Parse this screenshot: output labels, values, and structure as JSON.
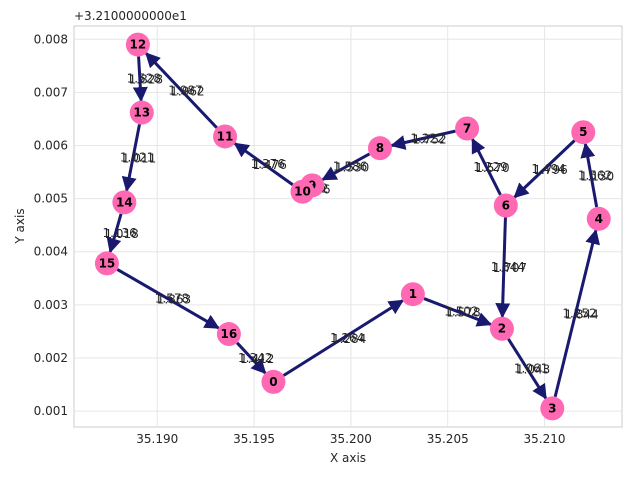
{
  "chart_data": {
    "type": "scatter",
    "xlabel": "X axis",
    "ylabel": "Y axis",
    "offset_label": "+3.2100000000e1",
    "xlim": [
      35.1857,
      35.214
    ],
    "ylim": [
      0.0007,
      0.00825
    ],
    "x_ticks": [
      35.19,
      35.195,
      35.2,
      35.205,
      35.21
    ],
    "x_tick_labels": [
      "35.190",
      "35.195",
      "35.200",
      "35.205",
      "35.210"
    ],
    "y_ticks": [
      0.001,
      0.002,
      0.003,
      0.004,
      0.005,
      0.006,
      0.007,
      0.008
    ],
    "y_tick_labels": [
      "0.001",
      "0.002",
      "0.003",
      "0.004",
      "0.005",
      "0.006",
      "0.007",
      "0.008"
    ],
    "grid": true,
    "node_color": "#ff69b4",
    "edge_color": "#191970",
    "nodes": [
      {
        "id": "0",
        "x": 35.196,
        "y": 0.00155
      },
      {
        "id": "1",
        "x": 35.2032,
        "y": 0.0032
      },
      {
        "id": "2",
        "x": 35.2078,
        "y": 0.00255
      },
      {
        "id": "3",
        "x": 35.2104,
        "y": 0.00105
      },
      {
        "id": "4",
        "x": 35.2128,
        "y": 0.00462
      },
      {
        "id": "5",
        "x": 35.212,
        "y": 0.00625
      },
      {
        "id": "6",
        "x": 35.208,
        "y": 0.00487
      },
      {
        "id": "7",
        "x": 35.206,
        "y": 0.00632
      },
      {
        "id": "8",
        "x": 35.2015,
        "y": 0.00595
      },
      {
        "id": "9",
        "x": 35.198,
        "y": 0.00525
      },
      {
        "id": "10",
        "x": 35.1975,
        "y": 0.00513
      },
      {
        "id": "11",
        "x": 35.1935,
        "y": 0.00617
      },
      {
        "id": "12",
        "x": 35.189,
        "y": 0.0079
      },
      {
        "id": "13",
        "x": 35.1892,
        "y": 0.00662
      },
      {
        "id": "14",
        "x": 35.1883,
        "y": 0.00493
      },
      {
        "id": "15",
        "x": 35.1874,
        "y": 0.00378
      },
      {
        "id": "16",
        "x": 35.1937,
        "y": 0.00245
      }
    ],
    "edges": [
      {
        "from": "0",
        "to": "1",
        "labels": [
          "1.264",
          "1.284"
        ]
      },
      {
        "from": "1",
        "to": "2",
        "labels": [
          "1.502",
          "1.578"
        ]
      },
      {
        "from": "2",
        "to": "3",
        "labels": [
          "1.061",
          "1.043"
        ]
      },
      {
        "from": "3",
        "to": "4",
        "labels": [
          "1.252",
          "1.844"
        ]
      },
      {
        "from": "4",
        "to": "5",
        "labels": [
          "1.562",
          "1.130"
        ]
      },
      {
        "from": "5",
        "to": "6",
        "labels": [
          "1.494",
          "1.796"
        ]
      },
      {
        "from": "6",
        "to": "2",
        "labels": [
          "1.344",
          "1.707"
        ]
      },
      {
        "from": "6",
        "to": "7",
        "labels": [
          "1.229",
          "1.570"
        ]
      },
      {
        "from": "7",
        "to": "8",
        "labels": [
          "1.222",
          "1.752"
        ]
      },
      {
        "from": "8",
        "to": "9",
        "labels": [
          "1.586",
          "1.530"
        ]
      },
      {
        "from": "9",
        "to": "10",
        "labels": [
          "0.282",
          "0.256"
        ]
      },
      {
        "from": "10",
        "to": "11",
        "labels": [
          "1.376",
          "1.476"
        ]
      },
      {
        "from": "11",
        "to": "12",
        "labels": [
          "1.987",
          "1.962"
        ]
      },
      {
        "from": "12",
        "to": "13",
        "labels": [
          "1.528",
          "1.828"
        ]
      },
      {
        "from": "13",
        "to": "14",
        "labels": [
          "1.021",
          "1.011"
        ]
      },
      {
        "from": "14",
        "to": "15",
        "labels": [
          "1.136",
          "1.018"
        ]
      },
      {
        "from": "15",
        "to": "16",
        "labels": [
          "1.578",
          "1.863"
        ]
      },
      {
        "from": "16",
        "to": "0",
        "labels": [
          "1.342",
          "1.412"
        ]
      }
    ]
  }
}
